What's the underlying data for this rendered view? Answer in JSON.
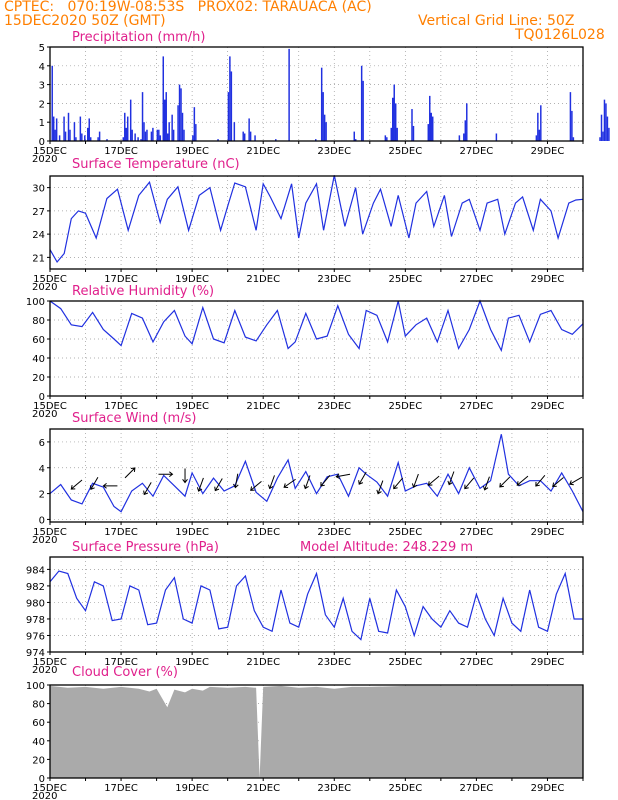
{
  "header": {
    "line1_left": "CPTEC:   070:19W-08:53S   PROX02: TARAUACA (AC)",
    "line2_left": "15DEC2020 50Z (GMT)",
    "line2_right": "Vertical Grid Line: 50Z",
    "line3_right": "TQ0126L028"
  },
  "colors": {
    "header": "#ff7f00",
    "title": "#e0208c",
    "series": "#2030e0",
    "cloud": "#aaaaaa"
  },
  "x_ticks": [
    "15DEC",
    "17DEC",
    "19DEC",
    "21DEC",
    "23DEC",
    "25DEC",
    "27DEC",
    "29DEC"
  ],
  "year_label": "2020",
  "chart_data": [
    {
      "type": "bar",
      "title": "Precipitation (mm/h)",
      "ylim": [
        0,
        5
      ],
      "yticks": [
        "0",
        "1",
        "2",
        "3",
        "4",
        "5"
      ],
      "note": "Hourly bars, days 15-30 Dec",
      "values_by_day": {
        "15": [
          0,
          4.0,
          1.3,
          0.6,
          1.2,
          0,
          0.3,
          0,
          0,
          1.3,
          0.5,
          0,
          1.5,
          0.6,
          0,
          0,
          1.0,
          0.2,
          0,
          0,
          1.3,
          0.4,
          0,
          0.3
        ],
        "16": [
          0,
          0.7,
          1.2,
          0.2,
          0,
          0,
          0,
          0,
          0.2,
          0.5,
          0,
          0,
          0,
          0,
          0.1,
          0,
          0,
          0,
          0,
          0,
          0,
          0,
          0,
          0
        ],
        "17": [
          0,
          0.2,
          1.5,
          0.7,
          1.3,
          0,
          2.2,
          0.6,
          0,
          0.4,
          0,
          0.2,
          0,
          0.1,
          2.6,
          1.0,
          0.5,
          0.6,
          0,
          0,
          0.5,
          0.7,
          0,
          0
        ],
        "18": [
          0.6,
          0.6,
          0.3,
          0,
          4.5,
          2.2,
          2.6,
          0.4,
          1.0,
          0,
          1.4,
          0.6,
          0,
          0,
          1.9,
          3.0,
          2.8,
          1.5,
          0.6,
          0,
          0,
          0,
          0,
          0
        ],
        "19": [
          0.3,
          1.8,
          0.9,
          0,
          0,
          0,
          0,
          0,
          0,
          0,
          0,
          0,
          0,
          0,
          0,
          0,
          0,
          0.1,
          0,
          0,
          0,
          0,
          0,
          0
        ],
        "20": [
          2.6,
          4.5,
          3.7,
          0,
          1.0,
          0,
          0,
          0,
          0,
          0,
          0.5,
          0.4,
          0,
          0,
          1.2,
          0.5,
          0,
          0,
          0.3,
          0,
          0,
          0,
          0,
          0
        ],
        "21": [
          0,
          0,
          0,
          0,
          0,
          0,
          0,
          0,
          0.1,
          0,
          0,
          0,
          0,
          0,
          0,
          0,
          0,
          4.9,
          0,
          0,
          0,
          0,
          0,
          0
        ],
        "22": [
          0,
          0,
          0,
          0,
          0,
          0,
          0,
          0,
          0,
          0,
          0,
          0.1,
          0,
          0,
          0,
          3.9,
          2.6,
          1.4,
          1.0,
          0,
          0,
          0,
          0,
          0
        ],
        "23": [
          0,
          0,
          0,
          0,
          0,
          0,
          0,
          0,
          0,
          0,
          0,
          0,
          0,
          0.5,
          0.1,
          0,
          0,
          0,
          4.0,
          3.2,
          0,
          0,
          0,
          0
        ],
        "24": [
          0,
          0,
          0,
          0,
          0,
          0,
          0,
          0,
          0,
          0,
          0.3,
          0.2,
          0,
          0,
          0.7,
          2.3,
          3.0,
          2.0,
          0.7,
          0,
          0,
          0,
          0,
          0
        ],
        "25": [
          0,
          0,
          0,
          0,
          1.7,
          0.8,
          0,
          0,
          0,
          0,
          0,
          0,
          0,
          0,
          0,
          0.9,
          2.4,
          1.5,
          1.3,
          0,
          0,
          0,
          0,
          0
        ],
        "26": [
          0,
          0,
          0,
          0,
          0,
          0,
          0,
          0,
          0,
          0,
          0,
          0,
          0.3,
          0,
          0,
          0.4,
          1.1,
          2.0,
          0,
          0,
          0,
          0,
          0,
          0
        ],
        "27": [
          0,
          0,
          0,
          0,
          0,
          0,
          0,
          0,
          0,
          0,
          0,
          0,
          0,
          0.4,
          0,
          0,
          0,
          0,
          0,
          0,
          0,
          0,
          0,
          0
        ],
        "28": [
          0,
          0,
          0,
          0,
          0,
          0,
          0,
          0,
          0,
          0,
          0,
          0,
          0,
          0,
          0,
          0,
          0.3,
          1.5,
          0.6,
          1.9,
          0,
          0,
          0,
          0
        ],
        "29": [
          0,
          0,
          0,
          0,
          0,
          0,
          0,
          0,
          0,
          0,
          0,
          0,
          0,
          0,
          0,
          2.6,
          1.6,
          0.2,
          0,
          0,
          0,
          0,
          0,
          0
        ],
        "30": [
          0,
          0,
          0,
          0,
          0,
          0,
          0,
          0,
          0,
          0,
          0,
          0.2,
          1.4,
          0.5,
          2.2,
          2.0,
          1.3,
          0.7,
          0,
          0,
          0,
          0,
          0,
          0
        ]
      }
    },
    {
      "type": "line",
      "title": "Surface Temperature (nC)",
      "ylim": [
        19.5,
        31.5
      ],
      "yticks": [
        "21",
        "24",
        "27",
        "30"
      ],
      "x_days": [
        15.0,
        15.2,
        15.4,
        15.6,
        15.8,
        16.0,
        16.3,
        16.6,
        16.9,
        17.2,
        17.5,
        17.8,
        18.1,
        18.3,
        18.6,
        18.9,
        19.2,
        19.5,
        19.8,
        20.0,
        20.2,
        20.5,
        20.8,
        21.0,
        21.2,
        21.5,
        21.8,
        22.0,
        22.2,
        22.5,
        22.7,
        23.0,
        23.3,
        23.6,
        23.8,
        24.1,
        24.3,
        24.6,
        24.8,
        25.1,
        25.3,
        25.6,
        25.8,
        26.1,
        26.3,
        26.6,
        26.8,
        27.1,
        27.3,
        27.6,
        27.8,
        28.1,
        28.3,
        28.6,
        28.8,
        29.1,
        29.3,
        29.6,
        29.8,
        30.0
      ],
      "values": [
        22.0,
        20.4,
        21.5,
        26.0,
        27.0,
        26.7,
        23.5,
        28.6,
        29.8,
        24.5,
        29.0,
        30.7,
        25.5,
        28.5,
        30.1,
        24.5,
        29.0,
        30.0,
        24.5,
        27.6,
        30.6,
        30.1,
        24.5,
        30.5,
        28.8,
        26.0,
        30.5,
        23.5,
        28.0,
        30.5,
        24.5,
        31.6,
        25.0,
        30.0,
        24.0,
        28.0,
        29.8,
        25.0,
        29.0,
        23.5,
        28.0,
        29.5,
        25.0,
        29.0,
        23.7,
        28.0,
        28.5,
        24.5,
        28.0,
        28.5,
        24.0,
        28.0,
        28.8,
        24.5,
        28.5,
        27.0,
        23.5,
        28.0,
        28.4,
        28.5
      ]
    },
    {
      "type": "line",
      "title": "Relative Humidity (%)",
      "ylim": [
        0,
        100
      ],
      "yticks": [
        "0",
        "20",
        "40",
        "60",
        "80",
        "100"
      ],
      "x_days": [
        15.0,
        15.3,
        15.6,
        15.9,
        16.2,
        16.5,
        16.8,
        17.0,
        17.3,
        17.6,
        17.9,
        18.2,
        18.5,
        18.8,
        19.0,
        19.3,
        19.6,
        19.9,
        20.2,
        20.5,
        20.8,
        21.1,
        21.4,
        21.7,
        21.9,
        22.2,
        22.5,
        22.8,
        23.1,
        23.4,
        23.7,
        23.9,
        24.2,
        24.5,
        24.8,
        25.0,
        25.3,
        25.6,
        25.9,
        26.2,
        26.5,
        26.8,
        27.1,
        27.4,
        27.7,
        27.9,
        28.2,
        28.5,
        28.8,
        29.1,
        29.4,
        29.7,
        30.0
      ],
      "values": [
        100,
        92,
        75,
        73,
        88,
        70,
        60,
        53,
        87,
        82,
        57,
        78,
        90,
        63,
        55,
        93,
        60,
        56,
        90,
        62,
        58,
        75,
        90,
        50,
        57,
        87,
        60,
        63,
        95,
        65,
        50,
        90,
        85,
        57,
        100,
        63,
        75,
        82,
        57,
        90,
        50,
        70,
        100,
        70,
        48,
        82,
        85,
        57,
        86,
        90,
        70,
        65,
        76
      ]
    },
    {
      "type": "line",
      "title": "Surface Wind (m/s)",
      "ylim": [
        -0.2,
        7.0
      ],
      "yticks": [
        "0",
        "2",
        "4",
        "6"
      ],
      "x_days": [
        15.0,
        15.3,
        15.6,
        15.9,
        16.2,
        16.5,
        16.8,
        17.0,
        17.3,
        17.6,
        17.9,
        18.2,
        18.5,
        18.8,
        19.0,
        19.3,
        19.6,
        19.9,
        20.2,
        20.5,
        20.8,
        21.1,
        21.4,
        21.7,
        21.9,
        22.2,
        22.5,
        22.8,
        23.1,
        23.4,
        23.7,
        23.9,
        24.2,
        24.5,
        24.8,
        25.0,
        25.3,
        25.6,
        25.9,
        26.2,
        26.5,
        26.8,
        27.1,
        27.4,
        27.7,
        27.9,
        28.2,
        28.5,
        28.8,
        29.1,
        29.4,
        29.7,
        30.0
      ],
      "values": [
        2.0,
        2.7,
        1.5,
        1.2,
        2.8,
        2.5,
        1.0,
        0.6,
        2.2,
        2.8,
        1.8,
        3.4,
        2.6,
        1.8,
        3.6,
        2.0,
        3.2,
        2.2,
        2.6,
        4.5,
        2.1,
        1.4,
        3.2,
        4.6,
        2.4,
        3.7,
        2.0,
        3.3,
        3.5,
        1.8,
        4.0,
        3.5,
        2.9,
        1.8,
        4.4,
        2.2,
        2.6,
        2.8,
        1.8,
        3.5,
        2.0,
        4.0,
        2.4,
        3.0,
        6.6,
        3.5,
        2.6,
        3.0,
        3.0,
        2.2,
        3.6,
        2.2,
        0.6
      ],
      "vectors": [
        {
          "day": 15.75,
          "speed": 2.7,
          "dir_deg": 230
        },
        {
          "day": 16.25,
          "speed": 2.8,
          "dir_deg": 210
        },
        {
          "day": 16.7,
          "speed": 2.6,
          "dir_deg": 270
        },
        {
          "day": 17.25,
          "speed": 3.6,
          "dir_deg": 45
        },
        {
          "day": 17.75,
          "speed": 2.4,
          "dir_deg": 210
        },
        {
          "day": 18.25,
          "speed": 3.5,
          "dir_deg": 90
        },
        {
          "day": 18.8,
          "speed": 3.4,
          "dir_deg": 180
        },
        {
          "day": 19.25,
          "speed": 2.7,
          "dir_deg": 200
        },
        {
          "day": 19.75,
          "speed": 2.7,
          "dir_deg": 210
        },
        {
          "day": 20.25,
          "speed": 3.0,
          "dir_deg": 190
        },
        {
          "day": 20.8,
          "speed": 2.6,
          "dir_deg": 230
        },
        {
          "day": 21.25,
          "speed": 2.9,
          "dir_deg": 200
        },
        {
          "day": 21.75,
          "speed": 2.8,
          "dir_deg": 235
        },
        {
          "day": 22.25,
          "speed": 2.9,
          "dir_deg": 200
        },
        {
          "day": 22.75,
          "speed": 3.0,
          "dir_deg": 220
        },
        {
          "day": 23.25,
          "speed": 3.4,
          "dir_deg": 260
        },
        {
          "day": 23.8,
          "speed": 3.2,
          "dir_deg": 210
        },
        {
          "day": 24.3,
          "speed": 2.5,
          "dir_deg": 200
        },
        {
          "day": 24.8,
          "speed": 2.8,
          "dir_deg": 220
        },
        {
          "day": 25.3,
          "speed": 3.0,
          "dir_deg": 200
        },
        {
          "day": 25.8,
          "speed": 3.0,
          "dir_deg": 230
        },
        {
          "day": 26.3,
          "speed": 3.2,
          "dir_deg": 200
        },
        {
          "day": 26.8,
          "speed": 2.8,
          "dir_deg": 220
        },
        {
          "day": 27.3,
          "speed": 2.8,
          "dir_deg": 200
        },
        {
          "day": 27.8,
          "speed": 2.9,
          "dir_deg": 225
        },
        {
          "day": 28.3,
          "speed": 3.0,
          "dir_deg": 230
        },
        {
          "day": 28.8,
          "speed": 3.0,
          "dir_deg": 220
        },
        {
          "day": 29.3,
          "speed": 2.9,
          "dir_deg": 230
        },
        {
          "day": 29.8,
          "speed": 3.0,
          "dir_deg": 240
        }
      ]
    },
    {
      "type": "line",
      "title": "Surface Pressure (hPa)",
      "extra_label": "Model Altitude: 248.229  m",
      "ylim": [
        974,
        985.5
      ],
      "yticks": [
        "974",
        "976",
        "978",
        "980",
        "982",
        "984"
      ],
      "x_days": [
        15.0,
        15.25,
        15.5,
        15.75,
        16.0,
        16.25,
        16.5,
        16.75,
        17.0,
        17.25,
        17.5,
        17.75,
        18.0,
        18.25,
        18.5,
        18.75,
        19.0,
        19.25,
        19.5,
        19.75,
        20.0,
        20.25,
        20.5,
        20.75,
        21.0,
        21.25,
        21.5,
        21.75,
        22.0,
        22.25,
        22.5,
        22.75,
        23.0,
        23.25,
        23.5,
        23.75,
        24.0,
        24.25,
        24.5,
        24.75,
        25.0,
        25.25,
        25.5,
        25.75,
        26.0,
        26.25,
        26.5,
        26.75,
        27.0,
        27.25,
        27.5,
        27.75,
        28.0,
        28.25,
        28.5,
        28.75,
        29.0,
        29.25,
        29.5,
        29.75,
        30.0
      ],
      "values": [
        982.5,
        983.8,
        983.5,
        980.5,
        979.0,
        982.5,
        982.0,
        977.8,
        978.0,
        982.0,
        981.5,
        977.3,
        977.5,
        981.5,
        983.0,
        978.0,
        977.5,
        982.0,
        981.5,
        976.8,
        977.0,
        982.0,
        983.2,
        979.0,
        977.0,
        976.5,
        981.5,
        977.5,
        977.0,
        981.0,
        983.5,
        978.5,
        977.0,
        980.5,
        976.5,
        975.5,
        980.5,
        976.5,
        976.3,
        981.5,
        979.5,
        976.0,
        979.5,
        978.0,
        977.0,
        979.0,
        977.5,
        977.0,
        981.0,
        978.0,
        976.0,
        980.5,
        977.5,
        976.5,
        981.5,
        977.0,
        976.5,
        981.0,
        983.5,
        978.0,
        978.0
      ]
    },
    {
      "type": "area",
      "title": "Cloud Cover (%)",
      "ylim": [
        0,
        100
      ],
      "yticks": [
        "0",
        "20",
        "40",
        "60",
        "80",
        "100"
      ],
      "x_days": [
        15.0,
        15.5,
        16.0,
        16.5,
        17.0,
        17.5,
        17.8,
        18.0,
        18.3,
        18.5,
        18.8,
        19.0,
        19.3,
        19.5,
        20.0,
        20.5,
        20.8,
        20.9,
        21.0,
        21.5,
        22.0,
        22.5,
        23.0,
        23.5,
        24.0,
        25.0,
        26.0,
        27.0,
        28.0,
        29.0,
        30.0
      ],
      "values": [
        99,
        97,
        98,
        96,
        98,
        96,
        93,
        96,
        76,
        95,
        92,
        96,
        94,
        98,
        97,
        98,
        97,
        0,
        98,
        99,
        97,
        98,
        96,
        98,
        98,
        99,
        99,
        99,
        99,
        99,
        99
      ]
    }
  ]
}
